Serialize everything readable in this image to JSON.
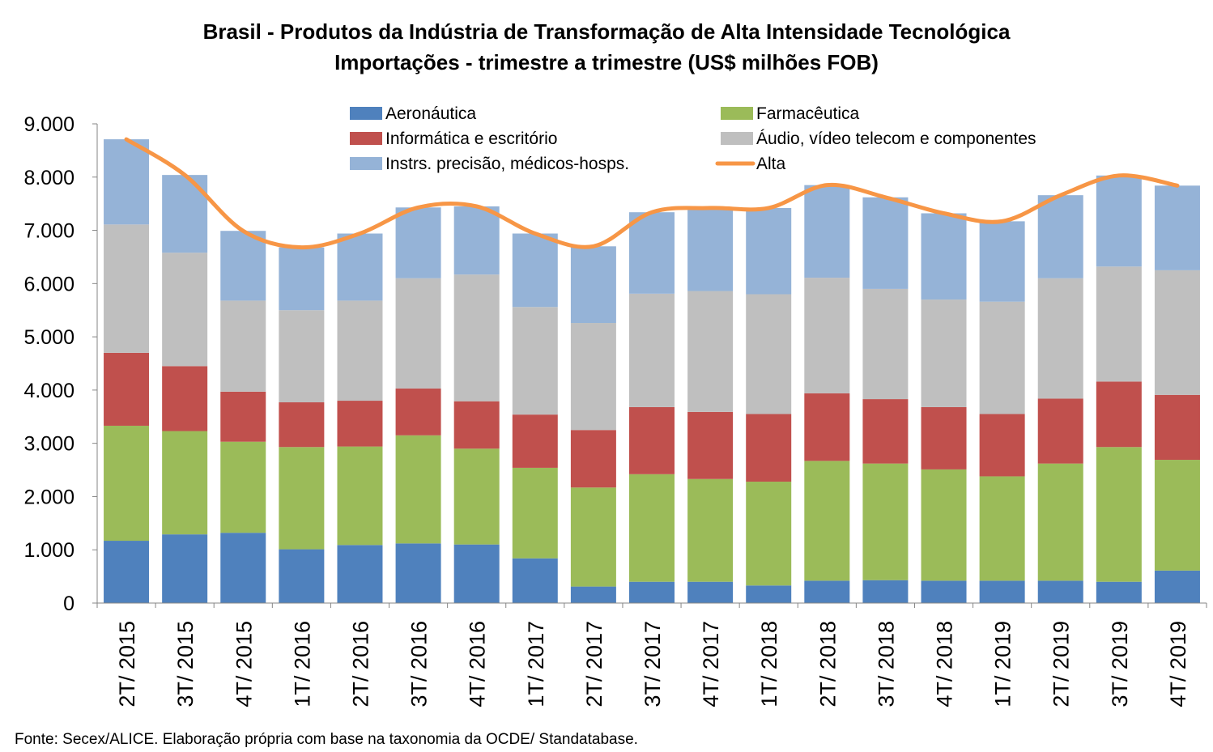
{
  "chart_data": {
    "type": "bar",
    "stacked": true,
    "title": "Brasil - Produtos da Indústria de Transformação de Alta Intensidade Tecnológica",
    "subtitle": "Importações - trimestre a trimestre (US$ milhões FOB)",
    "source": "Fonte: Secex/ALICE. Elaboração própria com base na taxonomia da OCDE/ Standatabase.",
    "categories": [
      "2T/ 2015",
      "3T/ 2015",
      "4T/ 2015",
      "1T/ 2016",
      "2T/ 2016",
      "3T/ 2016",
      "4T/ 2016",
      "1T/ 2017",
      "2T/ 2017",
      "3T/ 2017",
      "4T/ 2017",
      "1T/ 2018",
      "2T/ 2018",
      "3T/ 2018",
      "4T/ 2018",
      "1T/ 2019",
      "2T/ 2019",
      "3T/ 2019",
      "4T/ 2019"
    ],
    "ylim": [
      0,
      9000
    ],
    "yticks": [
      "0",
      "1.000",
      "2.000",
      "3.000",
      "4.000",
      "5.000",
      "6.000",
      "7.000",
      "8.000",
      "9.000"
    ],
    "ytick_values": [
      0,
      1000,
      2000,
      3000,
      4000,
      5000,
      6000,
      7000,
      8000,
      9000
    ],
    "grid": false,
    "legend_position": "top",
    "series": [
      {
        "name": "Aeronáutica",
        "color": "#4F81BD",
        "values": [
          1170,
          1290,
          1320,
          1010,
          1090,
          1120,
          1100,
          840,
          310,
          400,
          400,
          330,
          420,
          430,
          420,
          420,
          420,
          400,
          610
        ]
      },
      {
        "name": "Informática e escritório",
        "color": "#C0504D",
        "values": [
          1370,
          1220,
          940,
          840,
          860,
          880,
          890,
          1000,
          1080,
          1260,
          1260,
          1270,
          1270,
          1210,
          1170,
          1170,
          1220,
          1230,
          1220
        ]
      },
      {
        "name": "Instrs. precisão, médicos-hosps.",
        "color": "#95B3D7",
        "values": [
          1600,
          1460,
          1310,
          1180,
          1260,
          1330,
          1280,
          1380,
          1440,
          1530,
          1560,
          1620,
          1740,
          1720,
          1620,
          1510,
          1560,
          1710,
          1590
        ]
      },
      {
        "name": "Farmacêutica",
        "color": "#9BBB59",
        "values": [
          2160,
          1940,
          1710,
          1920,
          1850,
          2030,
          1800,
          1700,
          1860,
          2020,
          1930,
          1950,
          2250,
          2190,
          2090,
          1960,
          2200,
          2530,
          2080
        ]
      },
      {
        "name": "Áudio, vídeo telecom e componentes",
        "color": "#BFBFBF",
        "values": [
          2410,
          2130,
          1710,
          1730,
          1880,
          2070,
          2380,
          2020,
          2010,
          2130,
          2270,
          2250,
          2170,
          2070,
          2020,
          2110,
          2260,
          2160,
          2340
        ]
      }
    ],
    "line": {
      "name": "Alta",
      "color": "#F79646",
      "values": [
        8710,
        8040,
        6990,
        6680,
        6940,
        7430,
        7450,
        6940,
        6700,
        7340,
        7420,
        7420,
        7850,
        7620,
        7320,
        7170,
        7660,
        8030,
        7840
      ]
    },
    "stack_order": [
      "Aeronáutica",
      "Farmacêutica",
      "Informática e escritório",
      "Áudio, vídeo telecom e componentes",
      "Instrs. precisão, médicos-hosps."
    ],
    "legend_order": [
      "Aeronáutica",
      "Farmacêutica",
      "Informática e escritório",
      "Áudio, vídeo telecom e componentes",
      "Instrs. precisão, médicos-hosps.",
      "Alta"
    ]
  }
}
